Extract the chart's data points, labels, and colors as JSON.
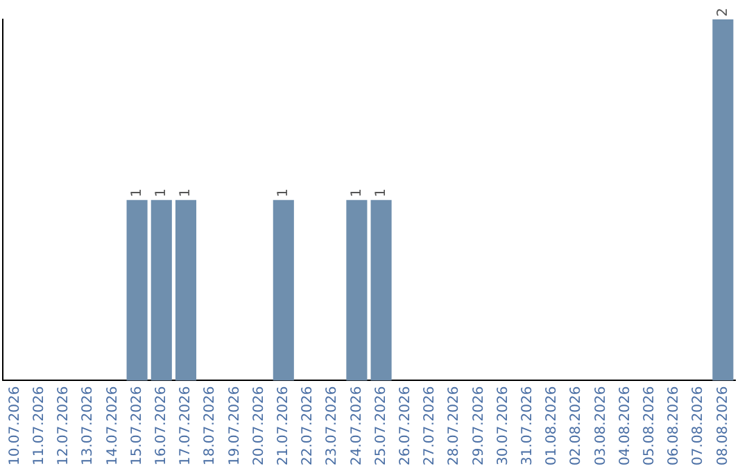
{
  "chart_data": {
    "type": "bar",
    "categories": [
      "10.07.2026",
      "11.07.2026",
      "12.07.2026",
      "13.07.2026",
      "14.07.2026",
      "15.07.2026",
      "16.07.2026",
      "17.07.2026",
      "18.07.2026",
      "19.07.2026",
      "20.07.2026",
      "21.07.2026",
      "22.07.2026",
      "23.07.2026",
      "24.07.2026",
      "25.07.2026",
      "26.07.2026",
      "27.07.2026",
      "28.07.2026",
      "29.07.2026",
      "30.07.2026",
      "31.07.2026",
      "01.08.2026",
      "02.08.2026",
      "03.08.2026",
      "04.08.2026",
      "05.08.2026",
      "06.08.2026",
      "07.08.2026",
      "08.08.2026"
    ],
    "values": [
      0,
      0,
      0,
      0,
      0,
      1,
      1,
      1,
      0,
      0,
      0,
      1,
      0,
      0,
      1,
      1,
      0,
      0,
      0,
      0,
      0,
      0,
      0,
      0,
      0,
      0,
      0,
      0,
      0,
      2
    ],
    "value_labels": [
      null,
      null,
      null,
      null,
      null,
      "1",
      "1",
      "1",
      null,
      null,
      null,
      "1",
      null,
      null,
      "1",
      "1",
      null,
      null,
      null,
      null,
      null,
      null,
      null,
      null,
      null,
      null,
      null,
      null,
      null,
      "2"
    ],
    "color": "#6f8fae",
    "grid": false,
    "legend": false
  }
}
